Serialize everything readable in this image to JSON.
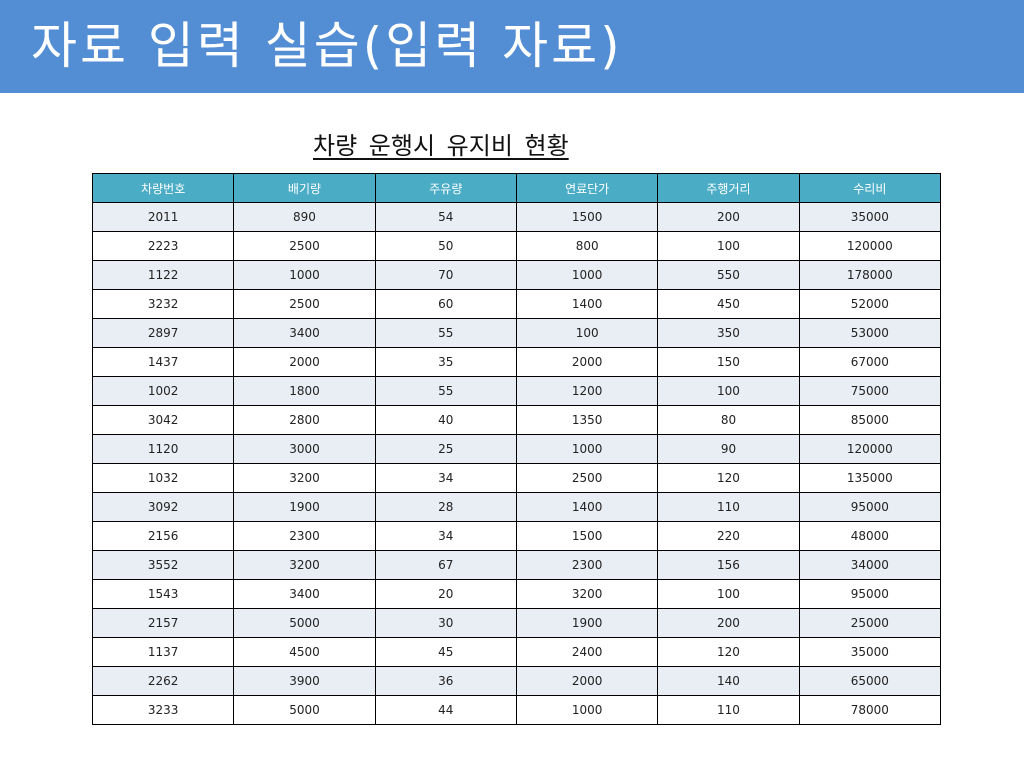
{
  "slide_title": "자료 입력 실습(입력 자료)",
  "table_title": "차량 운행시 유지비 현황",
  "colors": {
    "title_bar": "#538ed5",
    "header": "#4bacc6",
    "row_alt": "#e9eef5"
  },
  "table": {
    "headers": [
      "차량번호",
      "배기량",
      "주유량",
      "연료단가",
      "주행거리",
      "수리비"
    ],
    "rows": [
      [
        "2011",
        "890",
        "54",
        "1500",
        "200",
        "35000"
      ],
      [
        "2223",
        "2500",
        "50",
        "800",
        "100",
        "120000"
      ],
      [
        "1122",
        "1000",
        "70",
        "1000",
        "550",
        "178000"
      ],
      [
        "3232",
        "2500",
        "60",
        "1400",
        "450",
        "52000"
      ],
      [
        "2897",
        "3400",
        "55",
        "100",
        "350",
        "53000"
      ],
      [
        "1437",
        "2000",
        "35",
        "2000",
        "150",
        "67000"
      ],
      [
        "1002",
        "1800",
        "55",
        "1200",
        "100",
        "75000"
      ],
      [
        "3042",
        "2800",
        "40",
        "1350",
        "80",
        "85000"
      ],
      [
        "1120",
        "3000",
        "25",
        "1000",
        "90",
        "120000"
      ],
      [
        "1032",
        "3200",
        "34",
        "2500",
        "120",
        "135000"
      ],
      [
        "3092",
        "1900",
        "28",
        "1400",
        "110",
        "95000"
      ],
      [
        "2156",
        "2300",
        "34",
        "1500",
        "220",
        "48000"
      ],
      [
        "3552",
        "3200",
        "67",
        "2300",
        "156",
        "34000"
      ],
      [
        "1543",
        "3400",
        "20",
        "3200",
        "100",
        "95000"
      ],
      [
        "2157",
        "5000",
        "30",
        "1900",
        "200",
        "25000"
      ],
      [
        "1137",
        "4500",
        "45",
        "2400",
        "120",
        "35000"
      ],
      [
        "2262",
        "3900",
        "36",
        "2000",
        "140",
        "65000"
      ],
      [
        "3233",
        "5000",
        "44",
        "1000",
        "110",
        "78000"
      ]
    ]
  }
}
